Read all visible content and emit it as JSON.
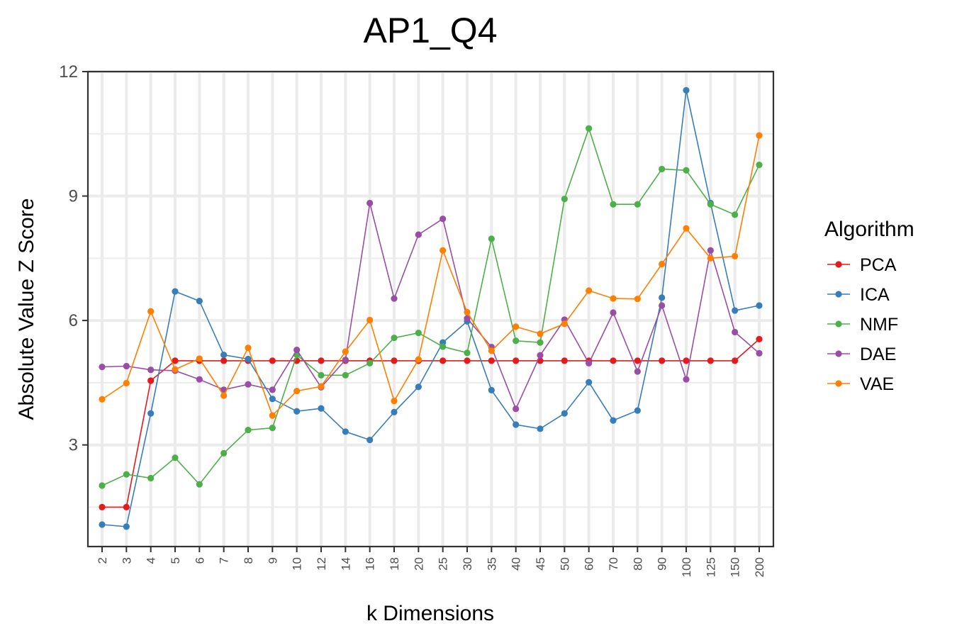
{
  "chart_data": {
    "type": "line",
    "title": "AP1_Q4",
    "xlabel": "k Dimensions",
    "ylabel": "Absolute Value Z Score",
    "categories": [
      "2",
      "3",
      "4",
      "5",
      "6",
      "7",
      "8",
      "9",
      "10",
      "12",
      "14",
      "16",
      "18",
      "20",
      "25",
      "30",
      "35",
      "40",
      "45",
      "50",
      "60",
      "70",
      "80",
      "90",
      "100",
      "125",
      "150",
      "200"
    ],
    "ylim": [
      0.55,
      12
    ],
    "yticks": [
      3,
      6,
      9,
      12
    ],
    "grid": true,
    "legend": {
      "title": "Algorithm",
      "position": "right"
    },
    "series": [
      {
        "name": "PCA",
        "color": "#E41A1C",
        "values": [
          1.5,
          1.5,
          4.55,
          5.03,
          5.03,
          5.03,
          5.03,
          5.03,
          5.03,
          5.03,
          5.03,
          5.03,
          5.03,
          5.03,
          5.03,
          5.03,
          5.03,
          5.03,
          5.03,
          5.03,
          5.03,
          5.03,
          5.03,
          5.03,
          5.03,
          5.03,
          5.03,
          5.55
        ]
      },
      {
        "name": "ICA",
        "color": "#377EB8",
        "values": [
          1.08,
          1.03,
          3.76,
          6.7,
          6.47,
          5.17,
          5.07,
          4.11,
          3.81,
          3.88,
          3.32,
          3.12,
          3.79,
          4.4,
          5.47,
          5.98,
          4.32,
          3.49,
          3.39,
          3.76,
          4.51,
          3.59,
          3.83,
          6.55,
          11.55,
          8.83,
          6.24,
          6.36
        ]
      },
      {
        "name": "NMF",
        "color": "#4DAF4A",
        "values": [
          2.02,
          2.29,
          2.2,
          2.69,
          2.05,
          2.8,
          3.36,
          3.41,
          5.17,
          4.68,
          4.68,
          4.97,
          5.58,
          5.7,
          5.37,
          5.22,
          7.97,
          5.51,
          5.47,
          8.93,
          10.63,
          8.8,
          8.8,
          9.65,
          9.62,
          8.8,
          8.55,
          9.75
        ]
      },
      {
        "name": "DAE",
        "color": "#984EA3",
        "values": [
          4.88,
          4.9,
          4.81,
          4.79,
          4.58,
          4.33,
          4.46,
          4.33,
          5.29,
          4.39,
          5.05,
          8.83,
          6.53,
          8.07,
          8.45,
          6.05,
          5.36,
          3.87,
          5.16,
          6.02,
          4.97,
          6.19,
          4.77,
          6.36,
          4.58,
          7.69,
          5.72,
          5.21
        ]
      },
      {
        "name": "VAE",
        "color": "#FF7F00",
        "values": [
          4.1,
          4.49,
          6.22,
          4.82,
          5.08,
          4.19,
          5.34,
          3.71,
          4.3,
          4.41,
          5.25,
          6.01,
          4.06,
          5.06,
          7.69,
          6.2,
          5.27,
          5.85,
          5.68,
          5.92,
          6.72,
          6.53,
          6.52,
          7.36,
          8.22,
          7.5,
          7.55,
          10.46
        ]
      }
    ]
  }
}
